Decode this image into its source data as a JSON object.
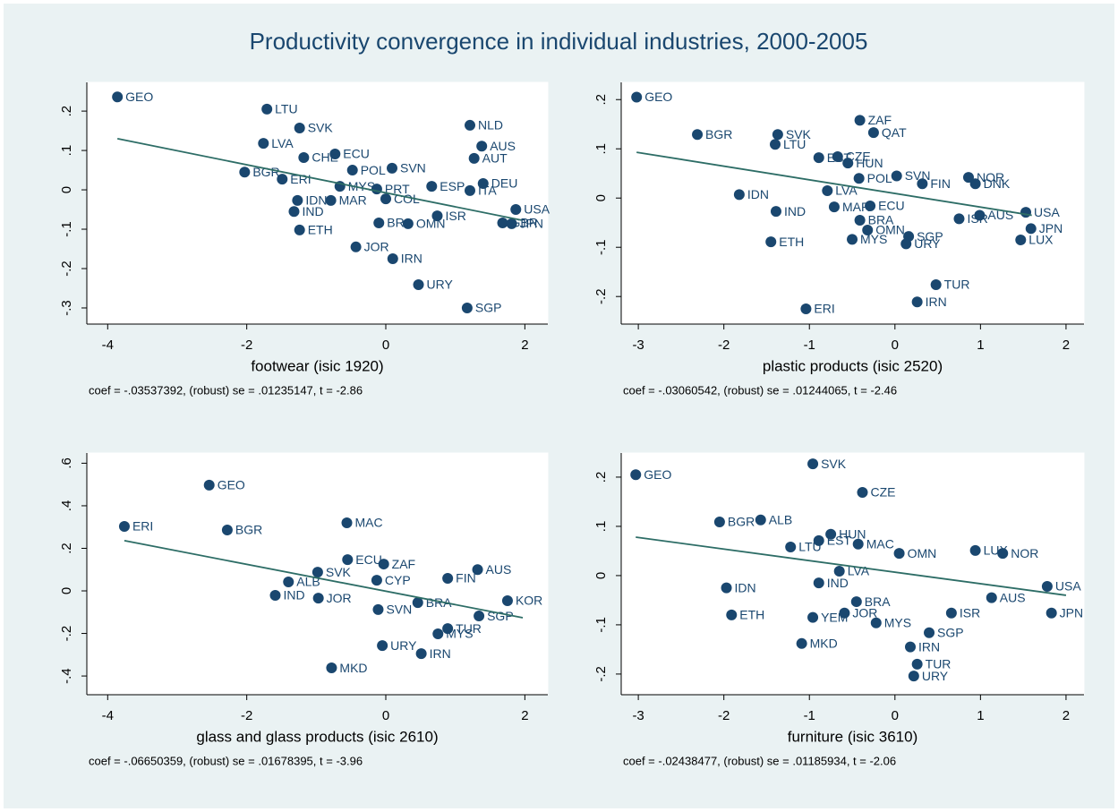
{
  "title": "Productivity convergence in individual industries, 2000-2005",
  "chart_data": [
    {
      "type": "scatter",
      "x_label": "footwear (isic 1920)",
      "note": "coef = -.03537392, (robust) se = .01235147, t = -2.86",
      "xlim": [
        -4.3,
        2.33
      ],
      "ylim": [
        -0.341,
        0.273
      ],
      "xticks": [
        -4,
        -2,
        0,
        2
      ],
      "yticks": [
        {
          "value": 0.2,
          "label": ".2"
        },
        {
          "value": 0.1,
          "label": ".1"
        },
        0,
        {
          "value": -0.1,
          "label": "-.1"
        },
        {
          "value": -0.2,
          "label": "-.2"
        },
        {
          "value": -0.3,
          "label": "-.3"
        }
      ],
      "color": "#1a476f",
      "point_labels": [
        "GEO",
        "LTU",
        "SVK",
        "NLD",
        "LVA",
        "AUS",
        "ECU",
        "CHE",
        "AUT",
        "POL",
        "SVN",
        "BGR",
        "ERI",
        "MYS",
        "PRT",
        "ESP",
        "ITA",
        "DEU",
        "IDN",
        "MAR",
        "COL",
        "IND",
        "ISR",
        "GBR",
        "JPN",
        "USA",
        "BRA",
        "OMN",
        "ETH",
        "JOR",
        "IRN",
        "URY",
        "SGP"
      ],
      "x": [
        -3.86,
        -1.71,
        -1.24,
        1.21,
        -1.76,
        1.38,
        -0.73,
        -1.18,
        1.27,
        -0.48,
        0.09,
        -2.03,
        -1.49,
        -0.66,
        -0.13,
        0.66,
        1.21,
        1.4,
        -1.27,
        -0.79,
        0,
        -1.32,
        0.74,
        1.68,
        1.81,
        1.87,
        -0.1,
        0.32,
        -1.24,
        -0.43,
        0.1,
        0.47,
        1.17
      ],
      "values": [
        0.236,
        0.205,
        0.157,
        0.164,
        0.118,
        0.111,
        0.091,
        0.082,
        0.08,
        0.05,
        0.055,
        0.045,
        0.027,
        0.009,
        0.002,
        0.009,
        -0.002,
        0.016,
        -0.027,
        -0.027,
        -0.023,
        -0.055,
        -0.066,
        -0.084,
        -0.086,
        -0.05,
        -0.084,
        -0.086,
        -0.102,
        -0.145,
        -0.175,
        -0.241,
        -0.3
      ],
      "fit": {
        "color": "#2d6d66",
        "x": [
          -3.86,
          1.95
        ],
        "values": [
          0.13,
          -0.077
        ]
      }
    },
    {
      "type": "scatter",
      "x_label": "plastic products (isic 2520)",
      "note": "coef = -.03060542, (robust) se = .01244065, t = -2.46",
      "xlim": [
        -3.2,
        2.21
      ],
      "ylim": [
        -0.256,
        0.235
      ],
      "xticks": [
        -3,
        -2,
        -1,
        0,
        1,
        2
      ],
      "yticks": [
        {
          "value": 0.2,
          "label": ".2"
        },
        {
          "value": 0.1,
          "label": ".1"
        },
        0,
        {
          "value": -0.1,
          "label": "-.1"
        },
        {
          "value": -0.2,
          "label": "-.2"
        }
      ],
      "color": "#1a476f",
      "point_labels": [
        "GEO",
        "ZAF",
        "BGR",
        "SVK",
        "QAT",
        "LTU",
        "EST",
        "CZE",
        "HUN",
        "SVN",
        "NOR",
        "POL",
        "DNK",
        "FIN",
        "IDN",
        "LVA",
        "ISR",
        "IND",
        "MAR",
        "ECU",
        "BRA",
        "AUS",
        "USA",
        "JPN",
        "OMN",
        "LUX",
        "ETH",
        "MYS",
        "SGP",
        "URY",
        "TUR",
        "IRN",
        "ERI"
      ],
      "x": [
        -3.02,
        -0.41,
        -2.31,
        -1.37,
        -0.25,
        -1.4,
        -0.89,
        -0.67,
        -0.55,
        0.02,
        0.86,
        -0.42,
        0.94,
        0.32,
        -1.82,
        -0.79,
        0.75,
        -1.39,
        -0.71,
        -0.29,
        -0.41,
        0.99,
        1.53,
        1.59,
        -0.32,
        1.47,
        -1.45,
        -0.5,
        0.16,
        0.13,
        0.48,
        0.26,
        -1.04
      ],
      "values": [
        0.205,
        0.158,
        0.129,
        0.129,
        0.133,
        0.109,
        0.082,
        0.084,
        0.071,
        0.045,
        0.042,
        0.04,
        0.029,
        0.029,
        0.007,
        0.015,
        -0.042,
        -0.027,
        -0.018,
        -0.016,
        -0.045,
        -0.035,
        -0.029,
        -0.062,
        -0.065,
        -0.085,
        -0.089,
        -0.084,
        -0.078,
        -0.093,
        -0.176,
        -0.211,
        -0.225
      ],
      "fit": {
        "color": "#2d6d66",
        "x": [
          -3.02,
          1.6
        ],
        "values": [
          0.093,
          -0.035
        ]
      }
    },
    {
      "type": "scatter",
      "x_label": "glass and glass products (isic 2610)",
      "note": "coef = -.06650359, (robust) se = .01678395, t = -3.96",
      "xlim": [
        -4.3,
        2.33
      ],
      "ylim": [
        -0.488,
        0.648
      ],
      "xticks": [
        -4,
        -2,
        0,
        2
      ],
      "yticks": [
        {
          "value": 0.6,
          "label": ".6"
        },
        {
          "value": 0.4,
          "label": ".4"
        },
        {
          "value": 0.2,
          "label": ".2"
        },
        0,
        {
          "value": -0.2,
          "label": "-.2"
        },
        {
          "value": -0.4,
          "label": "-.4"
        }
      ],
      "color": "#1a476f",
      "point_labels": [
        "GEO",
        "ERI",
        "BGR",
        "MAC",
        "ECU",
        "ZAF",
        "SVK",
        "AUS",
        "FIN",
        "ALB",
        "CYP",
        "IND",
        "JOR",
        "SVN",
        "BRA",
        "SGP",
        "TUR",
        "MYS",
        "URY",
        "IRN",
        "MKD",
        "KOR"
      ],
      "x": [
        -2.54,
        -3.76,
        -2.28,
        -0.56,
        -0.55,
        -0.03,
        -0.98,
        1.32,
        0.89,
        -1.4,
        -0.13,
        -1.59,
        -0.97,
        -0.11,
        0.46,
        1.34,
        0.89,
        0.75,
        -0.05,
        0.51,
        -0.78,
        1.75
      ],
      "values": [
        0.497,
        0.303,
        0.286,
        0.32,
        0.147,
        0.126,
        0.088,
        0.1,
        0.059,
        0.042,
        0.05,
        -0.021,
        -0.034,
        -0.088,
        -0.055,
        -0.118,
        -0.177,
        -0.202,
        -0.257,
        -0.295,
        -0.362,
        -0.046
      ],
      "fit": {
        "color": "#2d6d66",
        "x": [
          -3.76,
          1.97
        ],
        "values": [
          0.236,
          -0.126
        ]
      }
    },
    {
      "type": "scatter",
      "x_label": "furniture (isic 3610)",
      "note": "coef = -.02438477, (robust) se = .01185934, t = -2.06",
      "xlim": [
        -3.2,
        2.21
      ],
      "ylim": [
        -0.242,
        0.249
      ],
      "xticks": [
        -3,
        -2,
        -1,
        0,
        1,
        2
      ],
      "yticks": [
        {
          "value": 0.2,
          "label": ".2"
        },
        {
          "value": 0.1,
          "label": ".1"
        },
        0,
        {
          "value": -0.1,
          "label": "-.1"
        },
        {
          "value": -0.2,
          "label": "-.2"
        }
      ],
      "color": "#1a476f",
      "point_labels": [
        "GEO",
        "SVK",
        "CZE",
        "BGR",
        "ALB",
        "HUN",
        "LTU",
        "EST",
        "MAC",
        "OMN",
        "LUX",
        "NOR",
        "LVA",
        "IDN",
        "IND",
        "BRA",
        "AUS",
        "USA",
        "ETH",
        "YEM",
        "JOR",
        "MYS",
        "ISR",
        "JPN",
        "SGP",
        "MKD",
        "IRN",
        "TUR",
        "URY"
      ],
      "x": [
        -3.03,
        -0.96,
        -0.38,
        -2.05,
        -1.57,
        -0.75,
        -1.22,
        -0.89,
        -0.43,
        0.05,
        0.94,
        1.26,
        -0.65,
        -1.97,
        -0.89,
        -0.45,
        1.13,
        1.78,
        -1.91,
        -0.96,
        -0.59,
        -0.22,
        0.66,
        1.83,
        0.4,
        -1.09,
        0.18,
        0.26,
        0.22
      ],
      "values": [
        0.205,
        0.227,
        0.169,
        0.109,
        0.113,
        0.084,
        0.058,
        0.071,
        0.064,
        0.045,
        0.051,
        0.045,
        0.009,
        -0.025,
        -0.015,
        -0.053,
        -0.045,
        -0.022,
        -0.08,
        -0.085,
        -0.076,
        -0.096,
        -0.076,
        -0.076,
        -0.116,
        -0.138,
        -0.145,
        -0.18,
        -0.204
      ],
      "fit": {
        "color": "#2d6d66",
        "x": [
          -3.03,
          2.0
        ],
        "values": [
          0.078,
          -0.04
        ]
      }
    }
  ]
}
